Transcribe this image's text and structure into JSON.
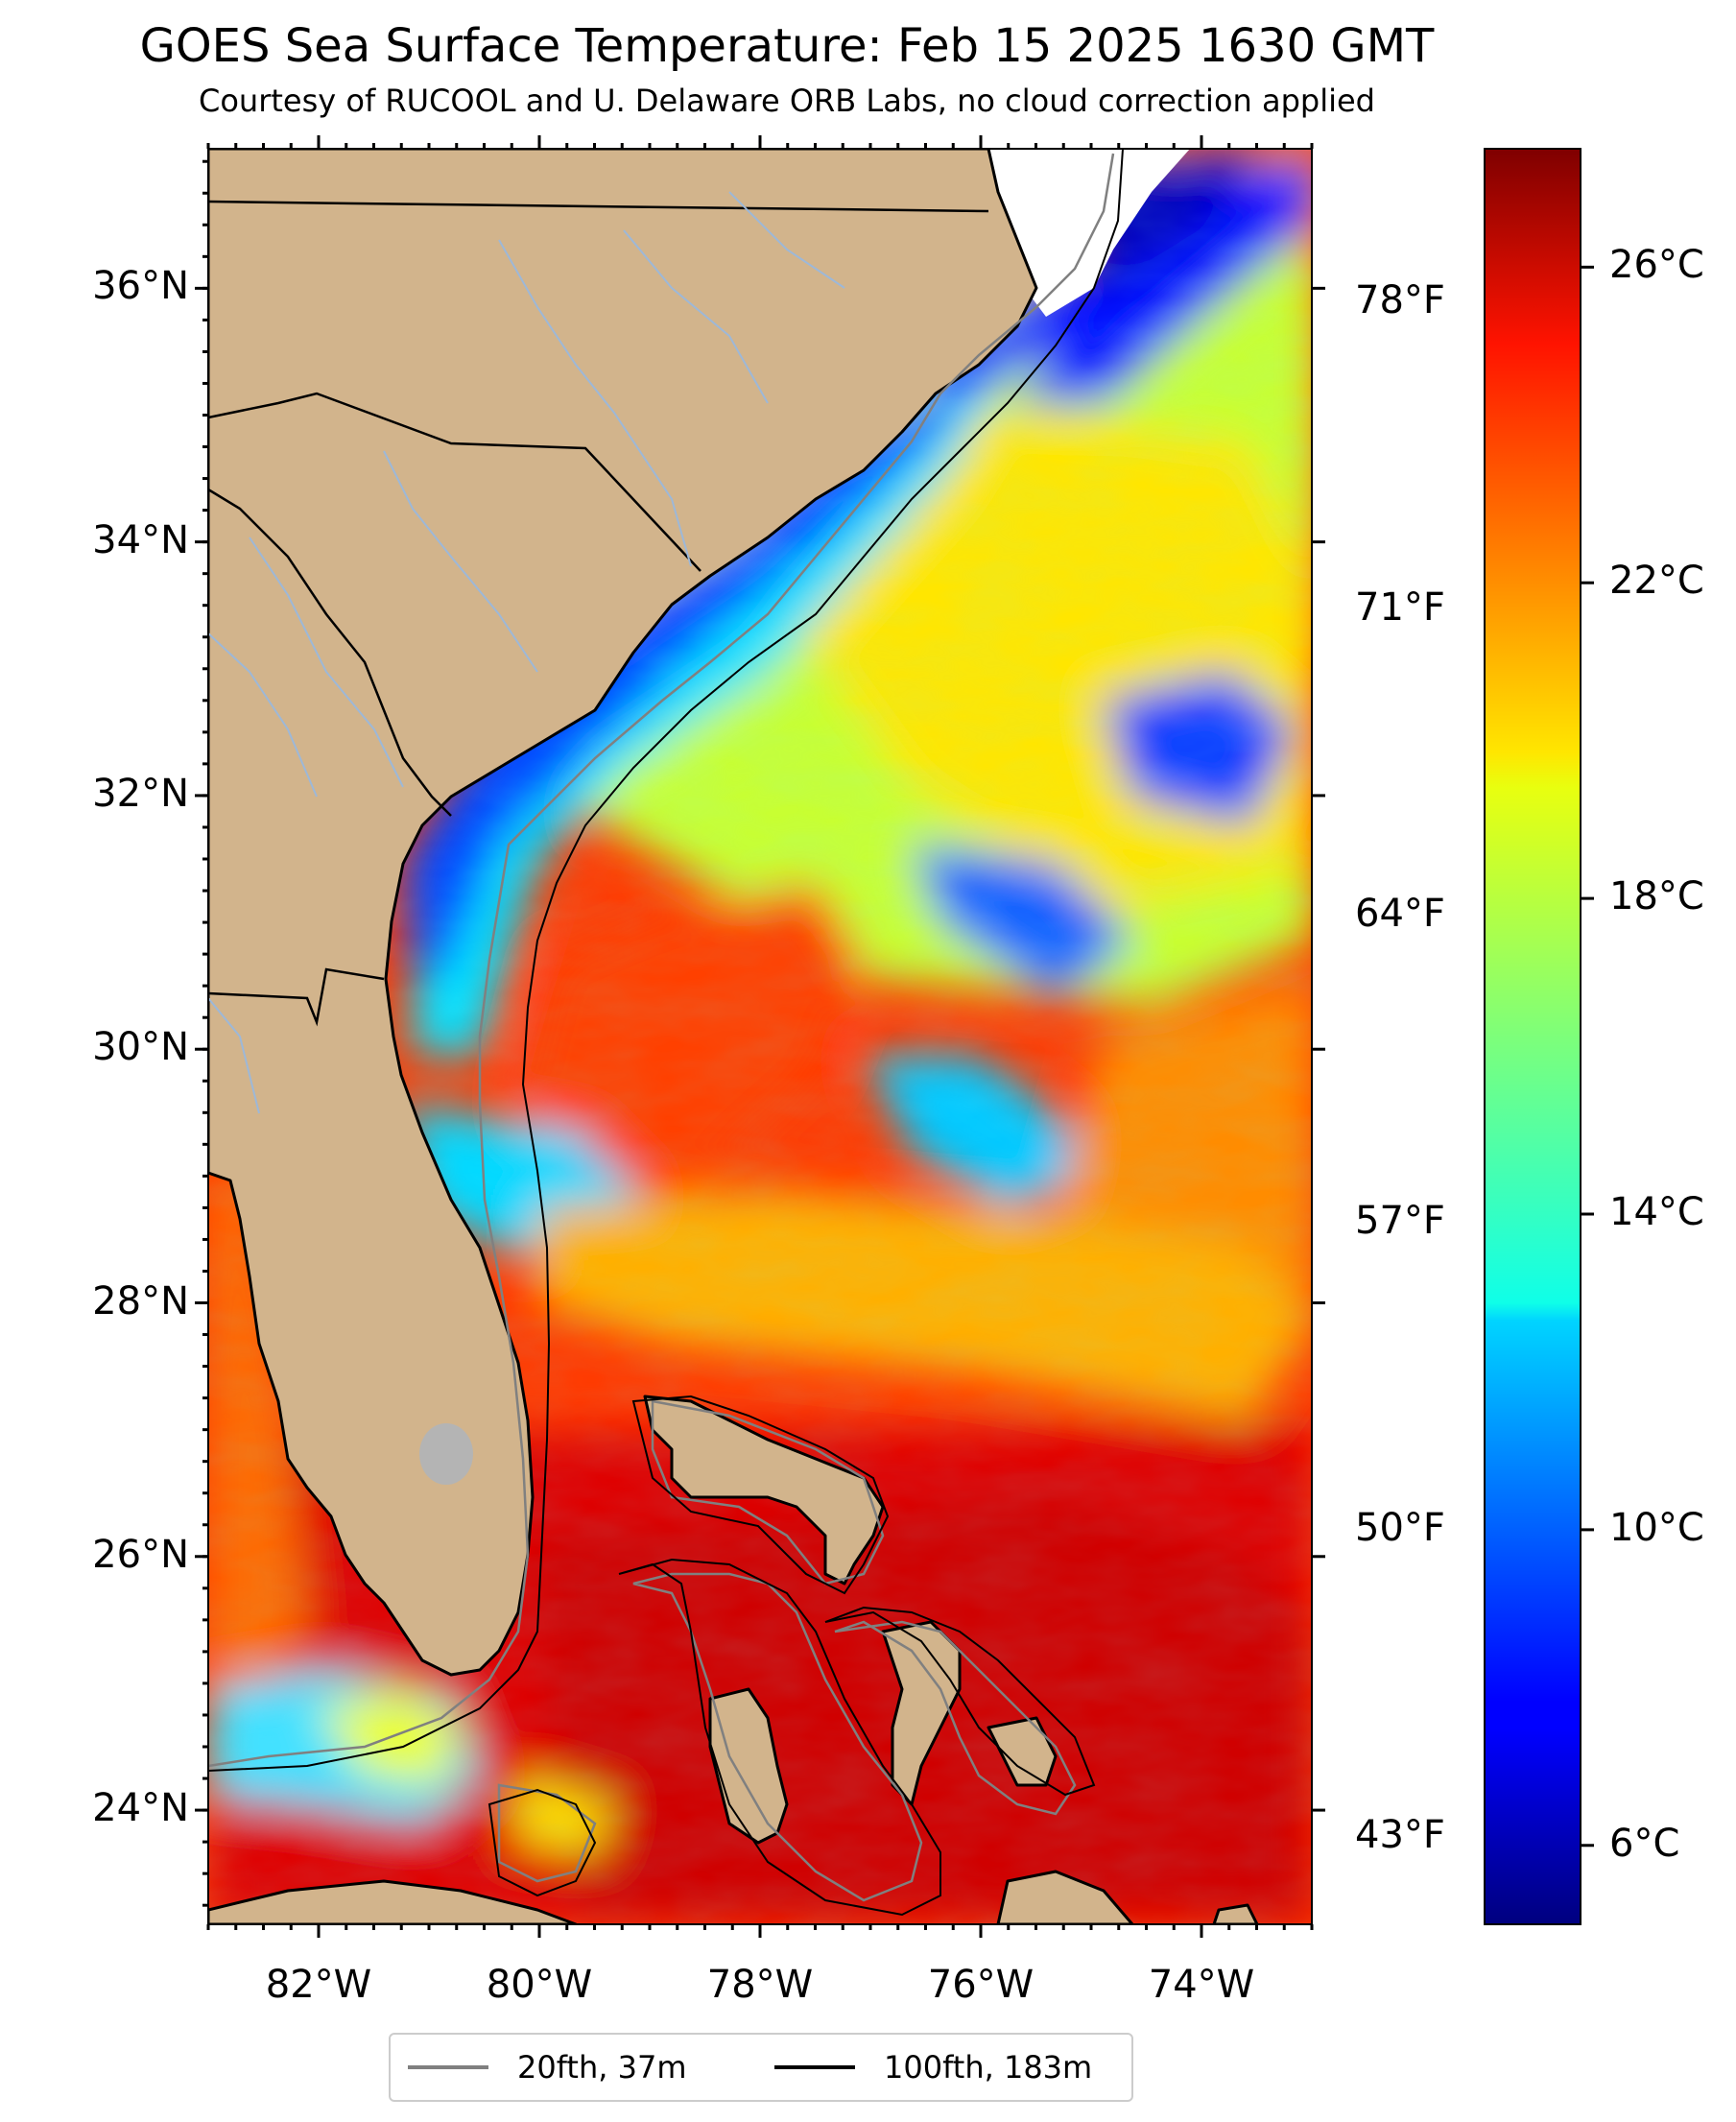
{
  "title": "GOES Sea Surface Temperature: Feb 15 2025 1630 GMT",
  "subtitle": "Courtesy of RUCOOL and U. Delaware ORB Labs, no cloud correction applied",
  "map": {
    "extent": {
      "lon_min": -83.0,
      "lon_max": -73.0,
      "lat_min": 23.1,
      "lat_max": 37.1
    },
    "lat_ticks": [
      {
        "value": 36,
        "label": "36°N"
      },
      {
        "value": 34,
        "label": "34°N"
      },
      {
        "value": 32,
        "label": "32°N"
      },
      {
        "value": 30,
        "label": "30°N"
      },
      {
        "value": 28,
        "label": "28°N"
      },
      {
        "value": 26,
        "label": "26°N"
      },
      {
        "value": 24,
        "label": "24°N"
      }
    ],
    "lon_ticks": [
      {
        "value": -82,
        "label": "82°W"
      },
      {
        "value": -80,
        "label": "80°W"
      },
      {
        "value": -78,
        "label": "78°W"
      },
      {
        "value": -76,
        "label": "76°W"
      },
      {
        "value": -74,
        "label": "74°W"
      }
    ],
    "degF_ticks": [
      {
        "value": 78,
        "label": "78°F"
      },
      {
        "value": 71,
        "label": "71°F"
      },
      {
        "value": 64,
        "label": "64°F"
      },
      {
        "value": 57,
        "label": "57°F"
      },
      {
        "value": 50,
        "label": "50°F"
      },
      {
        "value": 43,
        "label": "43°F"
      }
    ],
    "colors": {
      "land": "#d2b48c",
      "coast": "#000000",
      "rivers": "#9db8d8",
      "isobath_20": "#808080",
      "isobath_100": "#000000"
    }
  },
  "colorbar": {
    "min_c": 5.0,
    "max_c": 27.5,
    "ticks": [
      {
        "value": 26,
        "label": "26°C"
      },
      {
        "value": 22,
        "label": "22°C"
      },
      {
        "value": 18,
        "label": "18°C"
      },
      {
        "value": 14,
        "label": "14°C"
      },
      {
        "value": 10,
        "label": "10°C"
      },
      {
        "value": 6,
        "label": "6°C"
      }
    ],
    "colormap": "jet"
  },
  "legend": {
    "items": [
      {
        "label": "20fth, 37m",
        "color": "#808080"
      },
      {
        "label": "100fth, 183m",
        "color": "#000000"
      }
    ]
  }
}
